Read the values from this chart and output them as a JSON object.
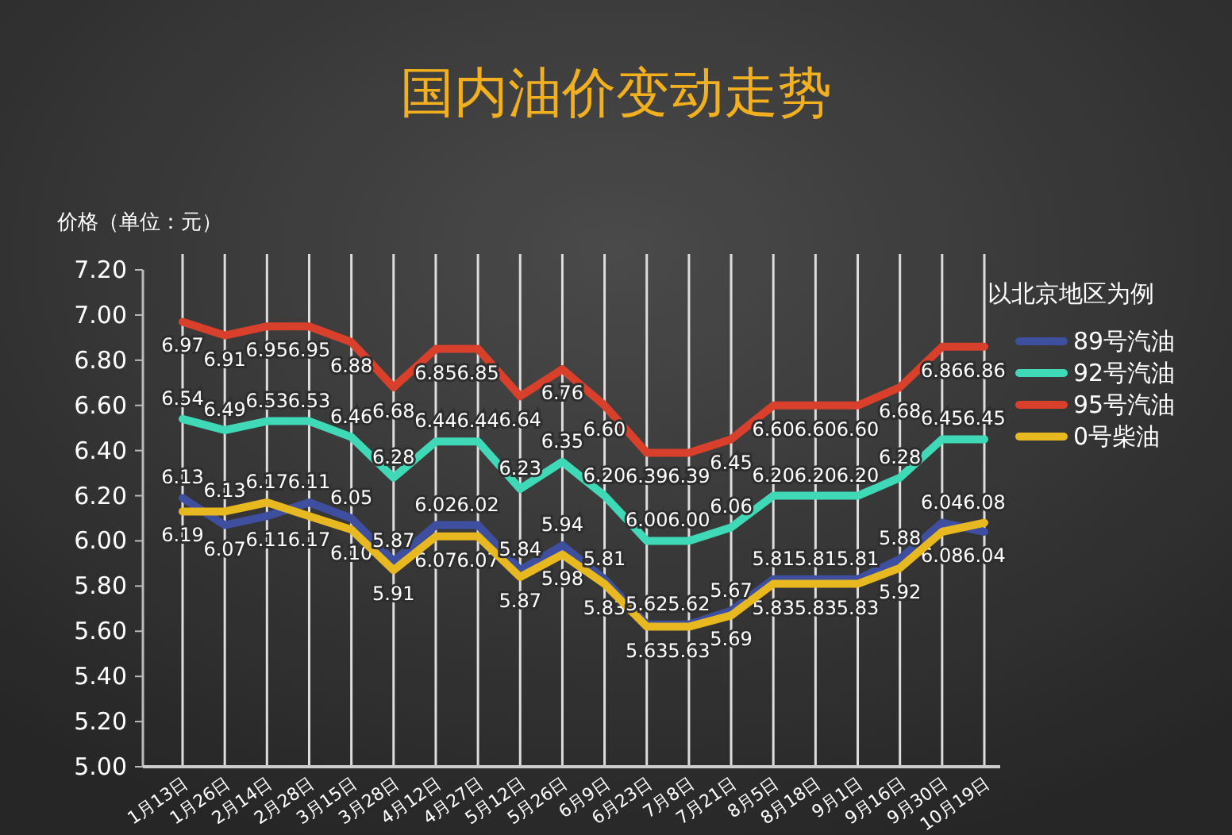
{
  "chart_data": {
    "type": "line",
    "title": "国内油价变动走势",
    "ylabel": "价格（单位：元）",
    "legend_title": "以北京地区为例",
    "legend": "right",
    "grid": "x",
    "marker": "none",
    "line_style": "solid",
    "categories": [
      "1月13日",
      "1月26日",
      "2月14日",
      "2月28日",
      "3月15日",
      "3月28日",
      "4月12日",
      "4月27日",
      "5月12日",
      "5月26日",
      "6月9日",
      "6月23日",
      "7月8日",
      "7月21日",
      "8月5日",
      "8月18日",
      "9月1日",
      "9月16日",
      "9月30日",
      "10月19日"
    ],
    "ylim": [
      5.0,
      7.2
    ],
    "yticks": [
      {
        "value": 5.0,
        "label": "5.00"
      },
      {
        "value": 5.2,
        "label": "5.20"
      },
      {
        "value": 5.4,
        "label": "5.40"
      },
      {
        "value": 5.6,
        "label": "5.60"
      },
      {
        "value": 5.8,
        "label": "5.80"
      },
      {
        "value": 6.0,
        "label": "6.00"
      },
      {
        "value": 6.2,
        "label": "6.20"
      },
      {
        "value": 6.4,
        "label": "6.40"
      },
      {
        "value": 6.6,
        "label": "6.60"
      },
      {
        "value": 6.8,
        "label": "6.80"
      },
      {
        "value": 7.0,
        "label": "7.00"
      },
      {
        "value": 7.2,
        "label": "7.20"
      }
    ],
    "series": [
      {
        "name": "89号汽油",
        "color": "#3f4fa0",
        "values": [
          6.19,
          6.07,
          6.11,
          6.17,
          6.1,
          5.91,
          6.07,
          6.07,
          5.87,
          5.98,
          5.83,
          5.63,
          5.63,
          5.69,
          5.83,
          5.83,
          5.83,
          5.92,
          6.08,
          6.04
        ],
        "value_labels": [
          "6.19",
          "6.07",
          "6.11",
          "6.17",
          "6.10",
          "5.91",
          "6.07",
          "6.07",
          "5.87",
          "5.98",
          "5.83",
          "5.63",
          "5.63",
          "5.69",
          "5.83",
          "5.83",
          "5.83",
          "5.92",
          "6.08",
          "6.04"
        ]
      },
      {
        "name": "92号汽油",
        "color": "#3fd9b8",
        "values": [
          6.54,
          6.49,
          6.53,
          6.53,
          6.46,
          6.28,
          6.44,
          6.44,
          6.23,
          6.35,
          6.2,
          6.0,
          6.0,
          6.06,
          6.2,
          6.2,
          6.2,
          6.28,
          6.45,
          6.45
        ],
        "value_labels": [
          "6.54",
          "6.49",
          "6.53",
          "6.53",
          "6.46",
          "6.28",
          "6.44",
          "6.44",
          "6.23",
          "6.35",
          "6.20",
          "6.00",
          "6.00",
          "6.06",
          "6.20",
          "6.20",
          "6.20",
          "6.28",
          "6.45",
          "6.45"
        ]
      },
      {
        "name": "95号汽油",
        "color": "#d9402b",
        "values": [
          6.97,
          6.91,
          6.95,
          6.95,
          6.88,
          6.68,
          6.85,
          6.85,
          6.64,
          6.76,
          6.6,
          6.39,
          6.39,
          6.45,
          6.6,
          6.6,
          6.6,
          6.68,
          6.86,
          6.86
        ],
        "value_labels": [
          "6.97",
          "6.91",
          "6.95",
          "6.95",
          "6.88",
          "6.68",
          "6.85",
          "6.85",
          "6.64",
          "6.76",
          "6.60",
          "6.39",
          "6.39",
          "6.45",
          "6.60",
          "6.60",
          "6.60",
          "6.68",
          "6.86",
          "6.86"
        ]
      },
      {
        "name": "0号柴油",
        "color": "#e8b820",
        "values": [
          6.13,
          6.13,
          6.17,
          6.11,
          6.05,
          5.87,
          6.02,
          6.02,
          5.84,
          5.94,
          5.81,
          5.62,
          5.62,
          5.67,
          5.81,
          5.81,
          5.81,
          5.88,
          6.04,
          6.08
        ],
        "value_labels": [
          "6.13",
          "6.13",
          "6.17",
          "6.11",
          "6.05",
          "5.87",
          "6.02",
          "6.02",
          "5.84",
          "5.94",
          "5.81",
          "5.62",
          "5.62",
          "5.67",
          "5.81",
          "5.81",
          "5.81",
          "5.88",
          "6.04",
          "6.08"
        ]
      }
    ]
  }
}
